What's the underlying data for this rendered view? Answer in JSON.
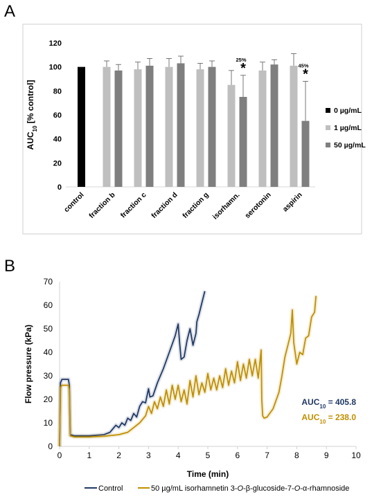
{
  "panel_labels": [
    "A",
    "B"
  ],
  "chart_data": [
    {
      "type": "bar",
      "ylabel": "AUC10 [% control]",
      "ylabel_main": "AUC",
      "ylabel_sub": "10",
      "ylabel_rest": " [% control]",
      "ylim": [
        0,
        120
      ],
      "yticks": [
        0,
        20,
        40,
        60,
        80,
        100,
        120
      ],
      "grid": false,
      "legend_position": "right",
      "categories": [
        "control",
        "fraction b",
        "fraction c",
        "fraction d",
        "fraction g",
        "isorhamn.",
        "serotonin",
        "aspirin"
      ],
      "series": [
        {
          "name": "0 µg/mL",
          "color": "#000000",
          "values": [
            100,
            null,
            null,
            null,
            null,
            null,
            null,
            null
          ],
          "errors": [
            0,
            null,
            null,
            null,
            null,
            null,
            null,
            null
          ]
        },
        {
          "name": "1 µg/mL",
          "color": "#bfbfbf",
          "values": [
            null,
            100,
            98,
            100,
            98,
            85,
            97,
            101
          ],
          "errors": [
            null,
            5,
            6,
            7,
            5,
            12,
            7,
            10
          ]
        },
        {
          "name": "50 µg/mL",
          "color": "#7f7f7f",
          "values": [
            null,
            97,
            101,
            103,
            100,
            75,
            102,
            55
          ],
          "errors": [
            null,
            5,
            6,
            6,
            5,
            18,
            4,
            33
          ]
        }
      ],
      "annotations": [
        {
          "category": "isorhamn.",
          "series": "50 µg/mL",
          "percent": "25%",
          "mark": "*"
        },
        {
          "category": "aspirin",
          "series": "50 µg/mL",
          "percent": "45%",
          "mark": "*"
        }
      ]
    },
    {
      "type": "line",
      "xlabel": "Time (min)",
      "ylabel": "Flow pressure (kPa)",
      "xlim": [
        0,
        10
      ],
      "ylim": [
        0,
        70
      ],
      "xticks": [
        0,
        1,
        2,
        3,
        4,
        5,
        6,
        7,
        8,
        9,
        10
      ],
      "yticks": [
        0,
        10,
        20,
        30,
        40,
        50,
        60,
        70
      ],
      "legend_position": "bottom",
      "series": [
        {
          "name": "Control",
          "color": "#203864",
          "auc_label": "AUC",
          "auc_sub": "10",
          "auc_value": " = 405.8",
          "x": [
            0.0,
            0.03,
            0.08,
            0.3,
            0.33,
            0.36,
            0.5,
            1.0,
            1.5,
            1.7,
            1.8,
            1.9,
            2.0,
            2.1,
            2.2,
            2.3,
            2.4,
            2.5,
            2.6,
            2.7,
            2.8,
            2.9,
            3.0,
            3.05,
            3.15,
            3.3,
            3.5,
            3.7,
            3.9,
            4.0,
            4.05,
            4.1,
            4.2,
            4.3,
            4.4,
            4.5,
            4.6,
            4.63,
            4.7,
            4.8,
            4.9
          ],
          "y": [
            0,
            27,
            28.5,
            28.5,
            26,
            5,
            4.5,
            4.5,
            5,
            6,
            7.5,
            9,
            8,
            10,
            9,
            12,
            11,
            14,
            12.5,
            17,
            19,
            18.5,
            24.5,
            21,
            21.5,
            27,
            33,
            40,
            47,
            52,
            44,
            37,
            38,
            45,
            50,
            43,
            48,
            53,
            56,
            61,
            66
          ]
        },
        {
          "name": "50 µg/mL isorhamnetin 3-O-β-glucoside-7-O-α-rhamnoside",
          "name_parts": [
            "50 µg/mL isorhamnetin 3-",
            "O",
            "-β-glucoside-7-",
            "O",
            "-α-rhamnoside"
          ],
          "color": "#bf8f00",
          "auc_label": "AUC",
          "auc_sub": "10",
          "auc_value": " = 238.0",
          "x": [
            0.0,
            0.03,
            0.08,
            0.3,
            0.33,
            0.36,
            0.5,
            1.0,
            1.5,
            2.0,
            2.3,
            2.5,
            2.7,
            2.9,
            3.0,
            3.1,
            3.2,
            3.3,
            3.4,
            3.5,
            3.6,
            3.7,
            3.8,
            3.9,
            4.0,
            4.1,
            4.2,
            4.3,
            4.4,
            4.5,
            4.6,
            4.7,
            4.8,
            4.9,
            5.0,
            5.1,
            5.2,
            5.3,
            5.4,
            5.5,
            5.6,
            5.7,
            5.8,
            5.9,
            6.0,
            6.1,
            6.2,
            6.3,
            6.4,
            6.5,
            6.6,
            6.7,
            6.8,
            6.82,
            6.85,
            6.9,
            7.0,
            7.2,
            7.4,
            7.5,
            7.6,
            7.7,
            7.8,
            7.85,
            7.9,
            8.0,
            8.1,
            8.2,
            8.3,
            8.4,
            8.5,
            8.6,
            8.65
          ],
          "y": [
            0,
            25,
            26,
            26,
            24,
            4.5,
            4,
            4,
            4.3,
            5,
            6,
            8,
            10,
            13,
            17,
            14,
            19,
            16,
            21,
            17,
            24,
            18,
            26,
            20,
            26,
            19,
            24,
            18,
            28,
            21,
            30,
            22,
            27,
            23,
            31,
            24,
            29,
            24,
            30,
            25,
            33,
            26,
            32,
            27,
            36,
            28,
            35,
            29,
            37,
            30,
            37,
            29,
            41,
            20,
            13,
            12,
            12.5,
            16,
            23,
            30,
            38,
            43,
            48,
            58,
            44,
            35,
            40,
            39,
            46,
            47,
            55,
            57,
            64
          ]
        }
      ]
    }
  ]
}
